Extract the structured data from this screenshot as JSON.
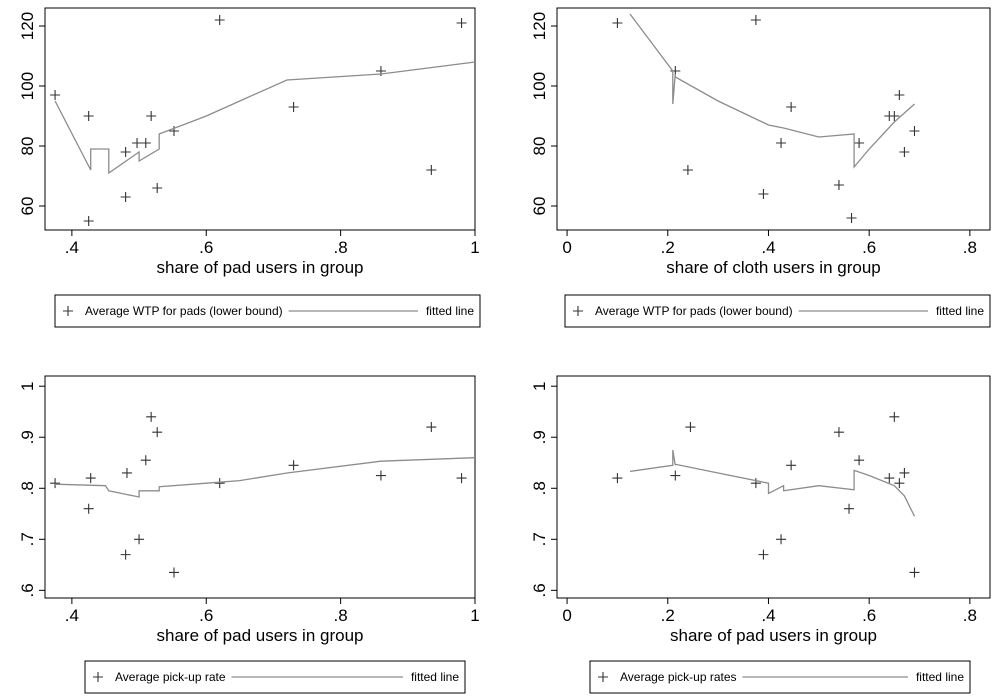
{
  "chart_data": [
    {
      "type": "scatter",
      "xlabel": "share of pad users in group",
      "ylabel": "",
      "xlim": [
        0.36,
        1.0
      ],
      "ylim": [
        52,
        126
      ],
      "xticks": [
        0.4,
        0.6,
        0.8,
        1.0
      ],
      "xtick_labels": [
        ".4",
        ".6",
        ".8",
        "1"
      ],
      "yticks": [
        60,
        80,
        100,
        120
      ],
      "ytick_labels": [
        "60",
        "80",
        "100",
        "120"
      ],
      "legend": {
        "position": "bottom",
        "entries": [
          "Average WTP for pads (lower bound)",
          "fitted line"
        ]
      },
      "series": [
        {
          "name": "Average WTP for pads (lower bound)",
          "kind": "scatter",
          "x": [
            0.375,
            0.425,
            0.425,
            0.48,
            0.48,
            0.497,
            0.51,
            0.518,
            0.527,
            0.552,
            0.62,
            0.73,
            0.86,
            0.935,
            0.98
          ],
          "y": [
            97,
            90,
            55,
            78,
            63,
            81,
            81,
            90,
            66,
            85,
            122,
            93,
            105,
            72,
            121
          ]
        },
        {
          "name": "fitted line",
          "kind": "line",
          "x": [
            0.375,
            0.405,
            0.428,
            0.428,
            0.455,
            0.455,
            0.5,
            0.5,
            0.53,
            0.53,
            0.6,
            0.65,
            0.72,
            0.86,
            1.0
          ],
          "y": [
            95,
            82,
            72,
            79,
            79,
            71,
            78,
            75,
            79,
            84,
            90,
            95,
            102,
            104,
            108
          ]
        }
      ]
    },
    {
      "type": "scatter",
      "xlabel": "share of cloth users in group",
      "ylabel": "",
      "xlim": [
        -0.02,
        0.84
      ],
      "ylim": [
        52,
        126
      ],
      "xticks": [
        0,
        0.2,
        0.4,
        0.6,
        0.8
      ],
      "xtick_labels": [
        "0",
        ".2",
        ".4",
        ".6",
        ".8"
      ],
      "yticks": [
        60,
        80,
        100,
        120
      ],
      "ytick_labels": [
        "60",
        "80",
        "100",
        "120"
      ],
      "legend": {
        "position": "bottom",
        "entries": [
          "Average WTP for pads (lower bound)",
          "fitted line"
        ]
      },
      "series": [
        {
          "name": "Average WTP for pads (lower bound)",
          "kind": "scatter",
          "x": [
            0.1,
            0.215,
            0.24,
            0.375,
            0.39,
            0.425,
            0.445,
            0.54,
            0.565,
            0.58,
            0.64,
            0.65,
            0.66,
            0.67,
            0.69
          ],
          "y": [
            121,
            105,
            72,
            122,
            64,
            81,
            93,
            67,
            56,
            81,
            90,
            90,
            97,
            78,
            85
          ]
        },
        {
          "name": "fitted line",
          "kind": "line",
          "x": [
            0.125,
            0.21,
            0.21,
            0.215,
            0.215,
            0.3,
            0.4,
            0.43,
            0.5,
            0.57,
            0.57,
            0.6,
            0.65,
            0.69
          ],
          "y": [
            124,
            105,
            94,
            104,
            103,
            95,
            87,
            86,
            83,
            84,
            73,
            79,
            88,
            94
          ]
        }
      ]
    },
    {
      "type": "scatter",
      "xlabel": "share of pad users in group",
      "ylabel": "",
      "xlim": [
        0.36,
        1.0
      ],
      "ylim": [
        0.585,
        1.02
      ],
      "xticks": [
        0.4,
        0.6,
        0.8,
        1.0
      ],
      "xtick_labels": [
        ".4",
        ".6",
        ".8",
        "1"
      ],
      "yticks": [
        0.6,
        0.7,
        0.8,
        0.9,
        1.0
      ],
      "ytick_labels": [
        ".6",
        ".7",
        ".8",
        ".9",
        "1"
      ],
      "legend": {
        "position": "bottom",
        "entries": [
          "Average pick-up rate",
          "fitted line"
        ]
      },
      "series": [
        {
          "name": "Average pick-up rate",
          "kind": "scatter",
          "x": [
            0.375,
            0.425,
            0.428,
            0.48,
            0.482,
            0.5,
            0.51,
            0.518,
            0.527,
            0.552,
            0.62,
            0.73,
            0.86,
            0.935,
            0.98
          ],
          "y": [
            0.81,
            0.76,
            0.82,
            0.67,
            0.83,
            0.7,
            0.855,
            0.94,
            0.91,
            0.635,
            0.81,
            0.845,
            0.825,
            0.92,
            0.82
          ]
        },
        {
          "name": "fitted line",
          "kind": "line",
          "x": [
            0.375,
            0.45,
            0.455,
            0.5,
            0.5,
            0.53,
            0.53,
            0.6,
            0.65,
            0.72,
            0.86,
            1.0
          ],
          "y": [
            0.808,
            0.805,
            0.795,
            0.783,
            0.795,
            0.795,
            0.803,
            0.81,
            0.815,
            0.83,
            0.853,
            0.86
          ]
        }
      ]
    },
    {
      "type": "scatter",
      "xlabel": "share of pad users in group",
      "ylabel": "",
      "xlim": [
        -0.02,
        0.84
      ],
      "ylim": [
        0.585,
        1.02
      ],
      "xticks": [
        0,
        0.2,
        0.4,
        0.6,
        0.8
      ],
      "xtick_labels": [
        "0",
        ".2",
        ".4",
        ".6",
        ".8"
      ],
      "yticks": [
        0.6,
        0.7,
        0.8,
        0.9,
        1.0
      ],
      "ytick_labels": [
        ".6",
        ".7",
        ".8",
        ".9",
        "1"
      ],
      "legend": {
        "position": "bottom",
        "entries": [
          "Average pick-up rates",
          "fitted line"
        ]
      },
      "series": [
        {
          "name": "Average pick-up rates",
          "kind": "scatter",
          "x": [
            0.1,
            0.215,
            0.245,
            0.375,
            0.39,
            0.425,
            0.445,
            0.54,
            0.56,
            0.58,
            0.64,
            0.65,
            0.66,
            0.67,
            0.69
          ],
          "y": [
            0.82,
            0.825,
            0.92,
            0.81,
            0.67,
            0.7,
            0.845,
            0.91,
            0.76,
            0.855,
            0.82,
            0.94,
            0.81,
            0.83,
            0.635
          ]
        },
        {
          "name": "fitted line",
          "kind": "line",
          "x": [
            0.125,
            0.21,
            0.21,
            0.215,
            0.215,
            0.3,
            0.4,
            0.4,
            0.43,
            0.43,
            0.5,
            0.57,
            0.57,
            0.6,
            0.65,
            0.67,
            0.69
          ],
          "y": [
            0.833,
            0.845,
            0.875,
            0.845,
            0.847,
            0.83,
            0.81,
            0.79,
            0.805,
            0.795,
            0.805,
            0.797,
            0.835,
            0.825,
            0.805,
            0.785,
            0.745
          ]
        }
      ]
    }
  ]
}
